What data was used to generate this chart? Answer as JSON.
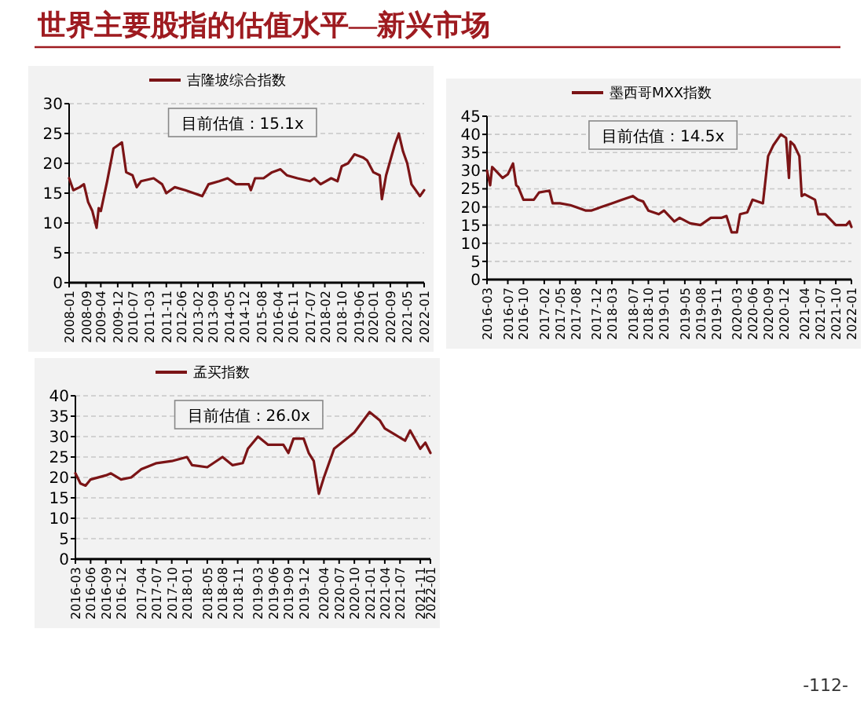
{
  "chart_data": [
    {
      "type": "other",
      "title": "世界主要股指的估值水平—新兴市场",
      "annotations": [
        "-112-"
      ]
    },
    {
      "type": "line",
      "annotations": [
        "目前估值：15.1x"
      ],
      "legend": "top",
      "grid": "y",
      "ylim": [
        0,
        30
      ],
      "yticks": [
        0,
        5,
        10,
        15,
        20,
        25,
        30
      ],
      "xlim": [
        "2008-01",
        "2022-01"
      ],
      "xticks": [
        "2008-01",
        "2008-09",
        "2009-04",
        "2009-12",
        "2010-07",
        "2011-03",
        "2011-11",
        "2012-06",
        "2013-02",
        "2013-09",
        "2014-05",
        "2014-12",
        "2015-08",
        "2016-04",
        "2016-11",
        "2017-07",
        "2018-02",
        "2018-10",
        "2019-06",
        "2020-01",
        "2020-09",
        "2021-05",
        "2022-01"
      ],
      "x": [
        "2008-01",
        "2008-03",
        "2008-06",
        "2008-08",
        "2008-10",
        "2008-12",
        "2009-02",
        "2009-03",
        "2009-04",
        "2009-07",
        "2009-10",
        "2010-02",
        "2010-04",
        "2010-07",
        "2010-09",
        "2010-11",
        "2011-05",
        "2011-09",
        "2011-11",
        "2012-03",
        "2012-08",
        "2012-12",
        "2013-04",
        "2013-07",
        "2013-12",
        "2014-04",
        "2014-08",
        "2015-02",
        "2015-03",
        "2015-05",
        "2015-09",
        "2016-01",
        "2016-05",
        "2016-08",
        "2017-01",
        "2017-07",
        "2017-09",
        "2017-12",
        "2018-05",
        "2018-08",
        "2018-10",
        "2019-01",
        "2019-04",
        "2019-08",
        "2019-10",
        "2020-01",
        "2020-04",
        "2020-05",
        "2020-07",
        "2020-09",
        "2020-11",
        "2021-01",
        "2021-03",
        "2021-05",
        "2021-07",
        "2021-09",
        "2021-11",
        "2022-01"
      ],
      "series": [
        {
          "name": "吉隆坡综合指数",
          "color": "#7b1416",
          "values": [
            17.5,
            15.5,
            16,
            16.5,
            13.5,
            12,
            9.2,
            12.5,
            12,
            17,
            22.5,
            23.5,
            18.5,
            18,
            16,
            17,
            17.5,
            16.5,
            15,
            16,
            15.5,
            15,
            14.5,
            16.5,
            17,
            17.5,
            16.5,
            16.5,
            15.5,
            17.5,
            17.5,
            18.5,
            19,
            18,
            17.5,
            17,
            17.5,
            16.5,
            17.5,
            17,
            19.5,
            20,
            21.5,
            21,
            20.5,
            18.5,
            18,
            14,
            18,
            20.5,
            23,
            25,
            22,
            20,
            16.5,
            15.5,
            14.5,
            15.5
          ]
        }
      ]
    },
    {
      "type": "line",
      "annotations": [
        "目前估值：14.5x"
      ],
      "legend": "top",
      "grid": "y",
      "ylim": [
        0,
        45
      ],
      "yticks": [
        0,
        5,
        10,
        15,
        20,
        25,
        30,
        35,
        40,
        45
      ],
      "xlim": [
        "2016-03",
        "2022-01"
      ],
      "xticks": [
        "2016-03",
        "2016-07",
        "2016-10",
        "2017-02",
        "2017-05",
        "2017-08",
        "2017-12",
        "2018-03",
        "2018-07",
        "2018-10",
        "2019-01",
        "2019-05",
        "2019-08",
        "2019-11",
        "2020-03",
        "2020-06",
        "2020-09",
        "2020-12",
        "2021-04",
        "2021-07",
        "2021-10",
        "2022-01"
      ],
      "x": [
        "2016-03",
        "2016-03-20",
        "2016-04",
        "2016-05",
        "2016-06",
        "2016-07",
        "2016-08",
        "2016-08-20",
        "2016-09",
        "2016-10",
        "2016-12",
        "2017-01",
        "2017-03",
        "2017-03-20",
        "2017-05",
        "2017-07",
        "2017-08",
        "2017-10",
        "2017-11",
        "2018-01",
        "2018-03",
        "2018-05",
        "2018-07",
        "2018-08",
        "2018-09",
        "2018-10",
        "2018-12",
        "2019-01",
        "2019-03",
        "2019-04",
        "2019-06",
        "2019-08",
        "2019-10",
        "2019-12",
        "2020-01",
        "2020-02",
        "2020-03",
        "2020-03-20",
        "2020-05",
        "2020-06",
        "2020-08",
        "2020-09",
        "2020-10",
        "2020-11-15",
        "2020-12-15",
        "2021-01",
        "2021-01-10",
        "2021-02",
        "2021-03",
        "2021-03-15",
        "2021-04",
        "2021-06",
        "2021-06-20",
        "2021-08",
        "2021-10",
        "2021-12",
        "2021-12-20",
        "2022-01"
      ],
      "series": [
        {
          "name": "墨西哥MXX指数",
          "color": "#7b1416",
          "values": [
            30,
            26,
            31,
            29.5,
            28,
            29,
            32,
            26,
            25.5,
            22,
            22,
            24,
            24.5,
            21,
            21,
            20.5,
            20,
            19,
            19,
            20,
            21,
            22,
            23,
            22,
            21.5,
            19,
            18,
            19,
            16,
            17,
            15.5,
            15,
            17,
            17,
            17.5,
            13,
            13,
            18,
            18.5,
            22,
            21,
            34,
            37,
            40,
            39,
            28,
            38,
            37,
            34,
            23,
            23.5,
            22,
            18,
            18,
            15,
            15,
            16,
            14.5
          ]
        }
      ]
    },
    {
      "type": "line",
      "annotations": [
        "目前估值：26.0x"
      ],
      "legend": "top",
      "grid": "y",
      "ylim": [
        0,
        40
      ],
      "yticks": [
        0,
        5,
        10,
        15,
        20,
        25,
        30,
        35,
        40
      ],
      "xlim": [
        "2016-03",
        "2022-01"
      ],
      "xticks": [
        "2016-03",
        "2016-06",
        "2016-09",
        "2016-12",
        "2017-04",
        "2017-07",
        "2017-10",
        "2018-01",
        "2018-05",
        "2018-08",
        "2018-11",
        "2019-03",
        "2019-06",
        "2019-09",
        "2019-12",
        "2020-04",
        "2020-07",
        "2020-10",
        "2021-01",
        "2021-04",
        "2021-07",
        "2021-11",
        "2022-01"
      ],
      "x": [
        "2016-03",
        "2016-04",
        "2016-05",
        "2016-06",
        "2016-09",
        "2016-10",
        "2016-12",
        "2017-02",
        "2017-04",
        "2017-07",
        "2017-10",
        "2018-01",
        "2018-02",
        "2018-05",
        "2018-08",
        "2018-10",
        "2018-12",
        "2019-01",
        "2019-03",
        "2019-05",
        "2019-08",
        "2019-09",
        "2019-10",
        "2019-12",
        "2020-01",
        "2020-02",
        "2020-03",
        "2020-04",
        "2020-06",
        "2020-09",
        "2020-10",
        "2021-01",
        "2021-03",
        "2021-04",
        "2021-06",
        "2021-08",
        "2021-09",
        "2021-11",
        "2021-12",
        "2022-01"
      ],
      "series": [
        {
          "name": "孟买指数",
          "color": "#7b1416",
          "values": [
            21,
            18.5,
            18,
            19.5,
            20.5,
            21,
            19.5,
            20,
            22,
            23.5,
            24,
            25,
            23,
            22.5,
            25,
            23,
            23.5,
            27,
            30,
            28,
            28,
            26,
            29.5,
            29.5,
            26,
            24,
            16,
            20,
            27,
            30,
            31,
            36,
            34,
            32,
            30.5,
            29,
            31.5,
            27,
            28.5,
            26
          ]
        }
      ]
    }
  ]
}
